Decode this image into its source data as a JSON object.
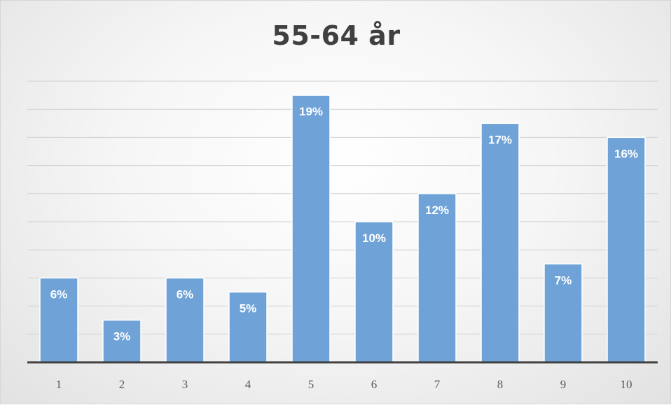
{
  "chart_data": {
    "type": "bar",
    "title": "55-64 år",
    "xlabel": "",
    "ylabel": "",
    "categories": [
      "1",
      "2",
      "3",
      "4",
      "5",
      "6",
      "7",
      "8",
      "9",
      "10"
    ],
    "values": [
      6,
      3,
      6,
      5,
      19,
      10,
      12,
      17,
      7,
      16
    ],
    "data_labels": [
      "6%",
      "3%",
      "6%",
      "5%",
      "19%",
      "10%",
      "12%",
      "17%",
      "7%",
      "16%"
    ],
    "ylim": [
      0,
      20
    ],
    "grid": true,
    "legend": "none",
    "bar_color": "#6fa3d8",
    "bar_border_color": "#ffffff",
    "axis_color": "#404040",
    "grid_color": "#d0d0d0"
  }
}
